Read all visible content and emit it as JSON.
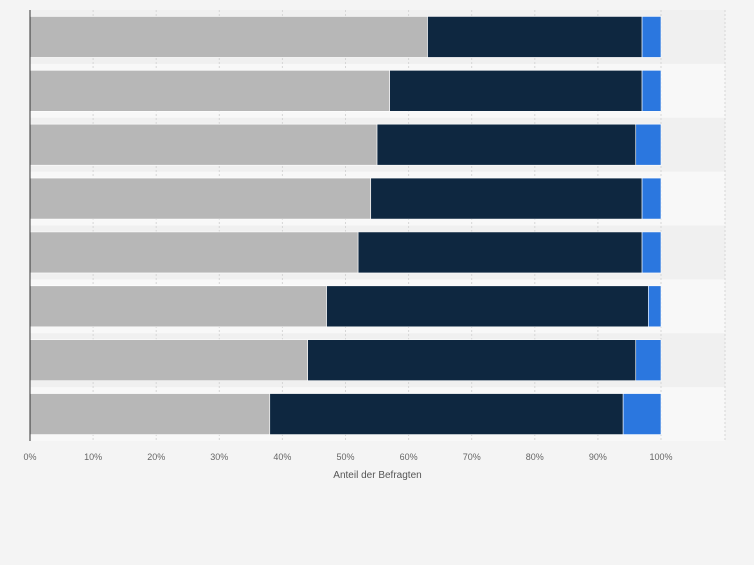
{
  "chart_data": {
    "type": "bar",
    "orientation": "horizontal",
    "stacked": true,
    "categories": [
      "",
      "",
      "",
      "",
      "",
      "",
      "",
      ""
    ],
    "series": [
      {
        "color": "#b7b7b7",
        "values": [
          63,
          57,
          55,
          54,
          52,
          47,
          44,
          38
        ]
      },
      {
        "color": "#0e2740",
        "values": [
          34,
          40,
          41,
          43,
          45,
          51,
          52,
          56
        ]
      },
      {
        "color": "#2b77df",
        "values": [
          3,
          3,
          4,
          3,
          3,
          2,
          4,
          6
        ]
      }
    ],
    "xlim": [
      0,
      100
    ],
    "x_ticks": [
      "0%",
      "10%",
      "20%",
      "30%",
      "40%",
      "50%",
      "60%",
      "70%",
      "80%",
      "90%",
      "100%"
    ],
    "xlabel": "Anteil der Befragten",
    "ylabel": "",
    "title": "",
    "grid": true,
    "legend": "none"
  }
}
